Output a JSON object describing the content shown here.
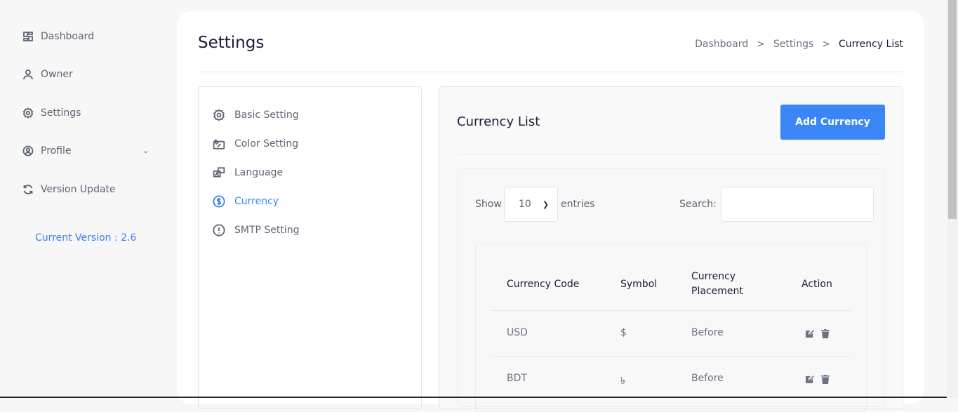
{
  "sidebar": {
    "items": [
      {
        "label": "Dashboard",
        "icon": "dashboard-icon"
      },
      {
        "label": "Owner",
        "icon": "user-icon"
      },
      {
        "label": "Settings",
        "icon": "gear-icon"
      },
      {
        "label": "Profile",
        "icon": "user-circle-icon"
      },
      {
        "label": "Version Update",
        "icon": "refresh-icon"
      }
    ],
    "version": "Current Version : 2.6"
  },
  "header": {
    "title": "Settings",
    "breadcrumb": [
      "Dashboard",
      "Settings",
      "Currency List"
    ],
    "separator": ">"
  },
  "settings_menu": [
    {
      "label": "Basic Setting"
    },
    {
      "label": "Color Setting"
    },
    {
      "label": "Language"
    },
    {
      "label": "Currency",
      "active": true
    },
    {
      "label": "SMTP Setting"
    }
  ],
  "currency": {
    "title": "Currency List",
    "add_button": "Add Currency",
    "show_label": "Show",
    "entries_value": "10",
    "entries_label": "entries",
    "search_label": "Search:",
    "search_value": "",
    "columns": [
      "Currency Code",
      "Symbol",
      "Currency Placement",
      "Action"
    ],
    "rows": [
      {
        "code": "USD",
        "symbol": "$",
        "placement": "Before"
      },
      {
        "code": "BDT",
        "symbol": "৳",
        "placement": "Before"
      }
    ]
  },
  "colors": {
    "accent": "#3a86f7",
    "text": "#5d6472",
    "heading": "#1b1b3a"
  }
}
